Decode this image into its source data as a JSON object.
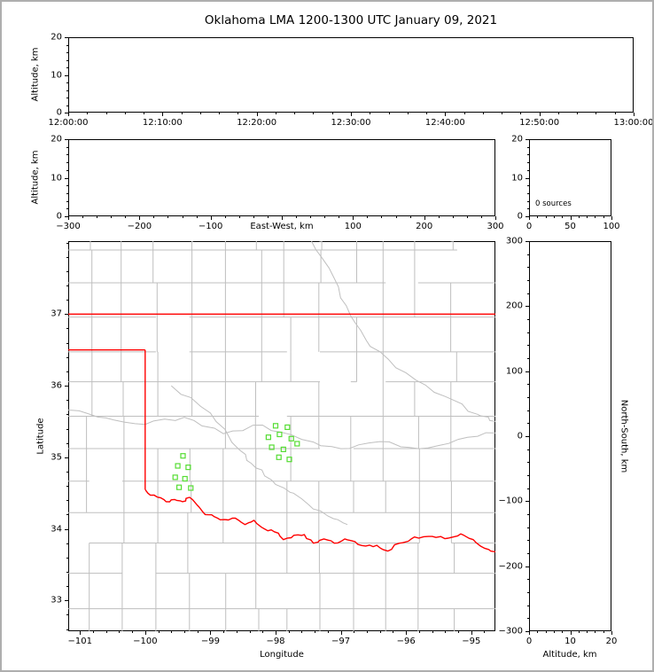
{
  "title": "Oklahoma LMA 1200-1300 UTC January 09, 2021",
  "colors": {
    "axis": "#000000",
    "county": "#bfbfbf",
    "state_border": "#ff0000",
    "station": "#55dd33"
  },
  "chart_data": [
    {
      "id": "time_height",
      "type": "scatter",
      "xlabel": "",
      "ylabel": "Altitude, km",
      "xlim": [
        0,
        3600
      ],
      "xticks": [
        0,
        600,
        1200,
        1800,
        2400,
        3000,
        3600
      ],
      "xtick_labels": [
        "12:00:00",
        "12:10:00",
        "12:20:00",
        "12:30:00",
        "12:40:00",
        "12:50:00",
        "13:00:00"
      ],
      "ylim": [
        0,
        20
      ],
      "yticks": [
        0,
        10,
        20
      ],
      "ytick_labels": [
        "0",
        "10",
        "20"
      ],
      "points": []
    },
    {
      "id": "ew_height",
      "type": "scatter",
      "xlabel": "East-West, km",
      "ylabel": "Altitude, km",
      "xlim": [
        -300,
        300
      ],
      "xticks": [
        -300,
        -200,
        -100,
        0,
        100,
        200,
        300
      ],
      "xtick_labels": [
        "−300",
        "−200",
        "−100",
        "",
        "100",
        "200",
        "300"
      ],
      "ylim": [
        0,
        20
      ],
      "yticks": [
        0,
        10,
        20
      ],
      "ytick_labels": [
        "0",
        "10",
        "20"
      ],
      "points": []
    },
    {
      "id": "source_histogram",
      "type": "scatter",
      "annotation": "0 sources",
      "xlim": [
        0,
        100
      ],
      "xticks": [
        0,
        50,
        100
      ],
      "xtick_labels": [
        "0",
        "50",
        "100"
      ],
      "ylim": [
        0,
        20
      ],
      "yticks": [
        0,
        10,
        20
      ],
      "ytick_labels": [
        "0",
        "10",
        "20"
      ],
      "points": []
    },
    {
      "id": "plan_view",
      "type": "scatter",
      "xlabel": "Longitude",
      "ylabel": "Latitude",
      "xlim": [
        -101.18,
        -94.63
      ],
      "xticks": [
        -101,
        -100,
        -99,
        -98,
        -97,
        -96,
        -95
      ],
      "xtick_labels": [
        "−101",
        "−100",
        "−99",
        "−98",
        "−97",
        "−96",
        "−95"
      ],
      "ylim": [
        32.57,
        38.02
      ],
      "yticks": [
        33,
        34,
        35,
        36,
        37
      ],
      "ytick_labels": [
        "33",
        "34",
        "35",
        "36",
        "37"
      ],
      "stations": [
        [
          -98.0,
          35.44
        ],
        [
          -97.82,
          35.42
        ],
        [
          -98.11,
          35.28
        ],
        [
          -97.94,
          35.32
        ],
        [
          -97.76,
          35.26
        ],
        [
          -98.06,
          35.14
        ],
        [
          -97.88,
          35.11
        ],
        [
          -97.67,
          35.19
        ],
        [
          -97.95,
          35.0
        ],
        [
          -97.79,
          34.97
        ],
        [
          -99.42,
          35.02
        ],
        [
          -99.5,
          34.88
        ],
        [
          -99.34,
          34.86
        ],
        [
          -99.54,
          34.72
        ],
        [
          -99.39,
          34.7
        ],
        [
          -99.48,
          34.58
        ],
        [
          -99.3,
          34.57
        ]
      ],
      "state_border": [
        {
          "name": "kansas-border",
          "points": [
            [
              -101.18,
              37.0
            ],
            [
              -94.63,
              37.0
            ]
          ]
        },
        {
          "name": "panhandle-north-border",
          "points": [
            [
              -101.18,
              36.5
            ],
            [
              -100.0,
              36.5
            ]
          ]
        },
        {
          "name": "texas-border-100w",
          "points": [
            [
              -100.0,
              36.5
            ],
            [
              -100.0,
              34.55
            ]
          ]
        },
        {
          "name": "red-river-border",
          "points": [
            [
              -100.0,
              34.55
            ],
            [
              -99.92,
              34.47
            ],
            [
              -99.8,
              34.44
            ],
            [
              -99.68,
              34.38
            ],
            [
              -99.55,
              34.41
            ],
            [
              -99.43,
              34.38
            ],
            [
              -99.32,
              34.44
            ],
            [
              -99.2,
              34.33
            ],
            [
              -99.08,
              34.2
            ],
            [
              -98.94,
              34.17
            ],
            [
              -98.78,
              34.13
            ],
            [
              -98.62,
              34.15
            ],
            [
              -98.47,
              34.06
            ],
            [
              -98.33,
              34.12
            ],
            [
              -98.17,
              34.0
            ],
            [
              -98.02,
              33.96
            ],
            [
              -97.88,
              33.85
            ],
            [
              -97.72,
              33.91
            ],
            [
              -97.56,
              33.92
            ],
            [
              -97.42,
              33.8
            ],
            [
              -97.26,
              33.86
            ],
            [
              -97.1,
              33.8
            ],
            [
              -96.94,
              33.86
            ],
            [
              -96.78,
              33.82
            ],
            [
              -96.62,
              33.76
            ],
            [
              -96.45,
              33.77
            ],
            [
              -96.28,
              33.69
            ],
            [
              -96.1,
              33.8
            ],
            [
              -95.92,
              33.86
            ],
            [
              -95.73,
              33.89
            ],
            [
              -95.54,
              33.88
            ],
            [
              -95.35,
              33.87
            ],
            [
              -95.16,
              33.93
            ],
            [
              -94.97,
              33.85
            ],
            [
              -94.8,
              33.73
            ],
            [
              -94.63,
              33.68
            ]
          ]
        }
      ]
    },
    {
      "id": "ns_height",
      "type": "scatter",
      "xlabel": "Altitude, km",
      "ylabel": "North-South, km",
      "xlim": [
        0,
        20
      ],
      "xticks": [
        0,
        10,
        20
      ],
      "xtick_labels": [
        "0",
        "10",
        "20"
      ],
      "ylim": [
        -300,
        300
      ],
      "yticks": [
        -300,
        -200,
        -100,
        0,
        100,
        200,
        300
      ],
      "ytick_labels": [
        "−300",
        "−200",
        "−100",
        "0",
        "100",
        "200",
        "300"
      ],
      "points": []
    }
  ]
}
